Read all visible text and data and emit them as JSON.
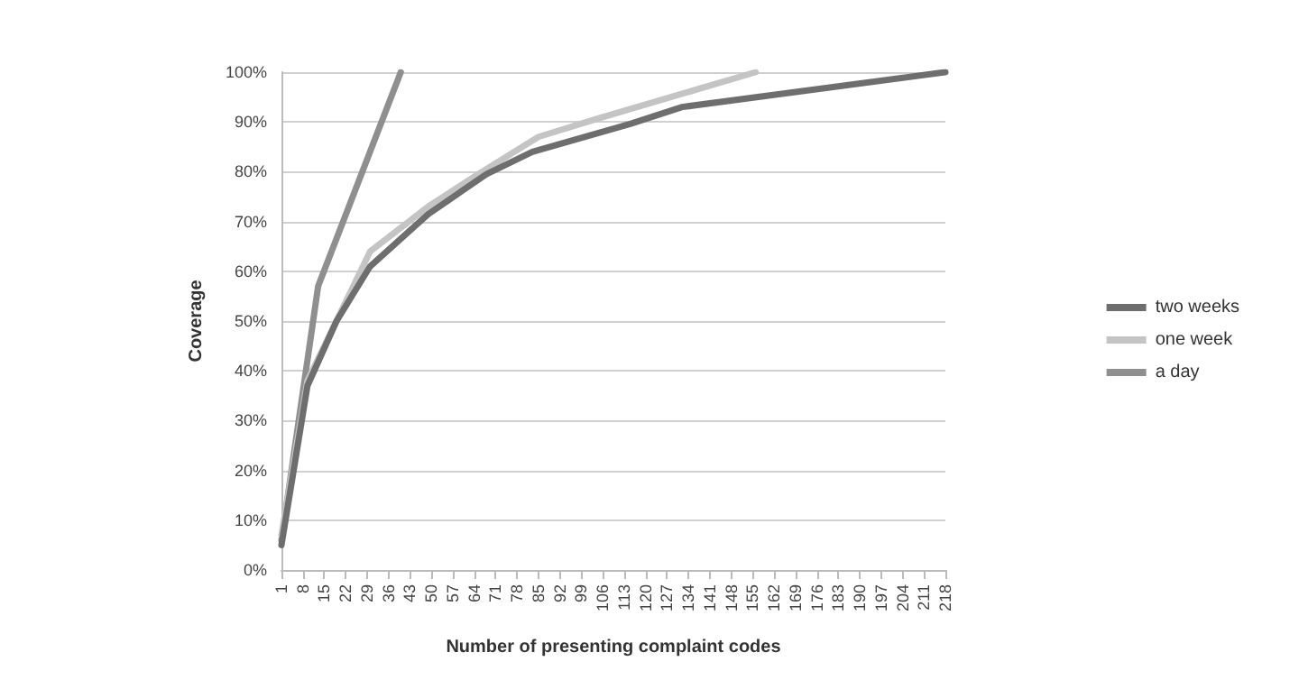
{
  "chart_data": {
    "type": "line",
    "xlabel": "Number of presenting complaint codes",
    "ylabel": "Coverage",
    "xlim": [
      1,
      218
    ],
    "xticks": [
      1,
      8,
      15,
      22,
      29,
      36,
      43,
      50,
      57,
      64,
      71,
      78,
      85,
      92,
      99,
      106,
      113,
      120,
      127,
      134,
      141,
      148,
      155,
      162,
      169,
      176,
      183,
      190,
      197,
      204,
      211,
      218
    ],
    "ylim": [
      0,
      100
    ],
    "yticks": [
      {
        "value": 0,
        "label": "0%"
      },
      {
        "value": 10,
        "label": "10%"
      },
      {
        "value": 20,
        "label": "20%"
      },
      {
        "value": 30,
        "label": "30%"
      },
      {
        "value": 40,
        "label": "40%"
      },
      {
        "value": 50,
        "label": "50%"
      },
      {
        "value": 60,
        "label": "60%"
      },
      {
        "value": 70,
        "label": "70%"
      },
      {
        "value": 80,
        "label": "80%"
      },
      {
        "value": 90,
        "label": "90%"
      },
      {
        "value": 100,
        "label": "100%"
      }
    ],
    "grid": "y",
    "legend": "right",
    "marker": "none",
    "line_style": "solid",
    "series": [
      {
        "name": "two weeks",
        "color": "#6e6e6e",
        "x": [
          1,
          9.5,
          19,
          30,
          49,
          68,
          83,
          115,
          132,
          218
        ],
        "values": [
          5,
          37,
          50,
          61,
          71.5,
          79.5,
          84,
          89.6,
          93,
          100
        ]
      },
      {
        "name": "one week",
        "color": "#c4c4c4",
        "x": [
          1,
          9.5,
          30,
          49,
          64,
          85,
          104,
          115,
          156
        ],
        "values": [
          7,
          38,
          64,
          73,
          79,
          87,
          90.6,
          92.6,
          100
        ]
      },
      {
        "name": "a day",
        "color": "#8f8f8f",
        "x": [
          1,
          13,
          40
        ],
        "values": [
          6,
          57,
          100
        ]
      }
    ]
  }
}
